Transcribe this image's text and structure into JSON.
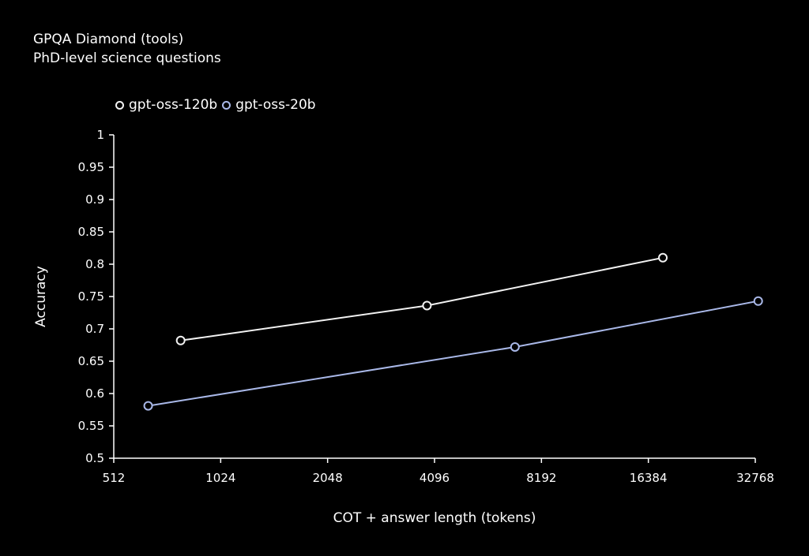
{
  "chart_data": {
    "type": "line",
    "title": "GPQA Diamond (tools)",
    "subtitle": "PhD-level science questions",
    "xlabel": "COT + answer length (tokens)",
    "ylabel": "Accuracy",
    "x_scale": "log2",
    "xlim": [
      512,
      32768
    ],
    "ylim": [
      0.5,
      1
    ],
    "x_ticks": [
      "512",
      "1024",
      "2048",
      "4096",
      "8192",
      "16384",
      "32768"
    ],
    "y_ticks": [
      "0.5",
      "0.55",
      "0.6",
      "0.65",
      "0.7",
      "0.75",
      "0.8",
      "0.85",
      "0.9",
      "0.95",
      "1"
    ],
    "legend_position": "top-left",
    "series": [
      {
        "name": "gpt-oss-120b",
        "color": "#f2f2f2",
        "x": [
          790,
          3900,
          18000
        ],
        "y": [
          0.682,
          0.736,
          0.81
        ]
      },
      {
        "name": "gpt-oss-20b",
        "color": "#a9b8e8",
        "x": [
          640,
          6900,
          33400
        ],
        "y": [
          0.581,
          0.672,
          0.743
        ]
      }
    ]
  }
}
